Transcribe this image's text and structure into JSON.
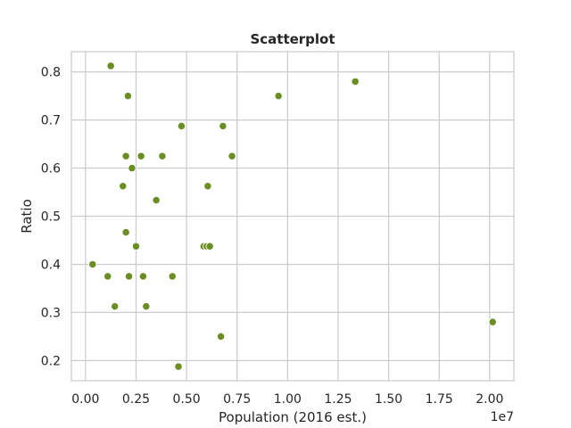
{
  "chart_data": {
    "type": "scatter",
    "title": "Scatterplot",
    "xlabel": "Population (2016 est.)",
    "ylabel": "Ratio",
    "x_offset_label": "1e7",
    "xlim": [
      -0.07,
      2.12
    ],
    "ylim": [
      0.158,
      0.842
    ],
    "x_ticks": [
      0.0,
      0.25,
      0.5,
      0.75,
      1.0,
      1.25,
      1.5,
      1.75,
      2.0
    ],
    "x_tick_labels": [
      "0.00",
      "0.25",
      "0.50",
      "0.75",
      "1.00",
      "1.25",
      "1.50",
      "1.75",
      "2.00"
    ],
    "y_ticks": [
      0.2,
      0.3,
      0.4,
      0.5,
      0.6,
      0.7,
      0.8
    ],
    "y_tick_labels": [
      "0.2",
      "0.3",
      "0.4",
      "0.5",
      "0.6",
      "0.7",
      "0.8"
    ],
    "grid": true,
    "marker_color": "#6b8e23",
    "marker_edge_color": "#ffffff",
    "points": [
      {
        "x": 0.125,
        "y": 0.8125
      },
      {
        "x": 0.21,
        "y": 0.75
      },
      {
        "x": 0.955,
        "y": 0.75
      },
      {
        "x": 1.335,
        "y": 0.78
      },
      {
        "x": 0.475,
        "y": 0.6875
      },
      {
        "x": 0.68,
        "y": 0.6875
      },
      {
        "x": 0.2,
        "y": 0.625
      },
      {
        "x": 0.275,
        "y": 0.625
      },
      {
        "x": 0.38,
        "y": 0.625
      },
      {
        "x": 0.725,
        "y": 0.625
      },
      {
        "x": 0.23,
        "y": 0.6
      },
      {
        "x": 0.185,
        "y": 0.5625
      },
      {
        "x": 0.605,
        "y": 0.5625
      },
      {
        "x": 0.35,
        "y": 0.5333
      },
      {
        "x": 0.2,
        "y": 0.4667
      },
      {
        "x": 0.25,
        "y": 0.4375
      },
      {
        "x": 0.585,
        "y": 0.4375
      },
      {
        "x": 0.6,
        "y": 0.4375
      },
      {
        "x": 0.615,
        "y": 0.4375
      },
      {
        "x": 0.035,
        "y": 0.4
      },
      {
        "x": 0.11,
        "y": 0.375
      },
      {
        "x": 0.215,
        "y": 0.375
      },
      {
        "x": 0.285,
        "y": 0.375
      },
      {
        "x": 0.43,
        "y": 0.375
      },
      {
        "x": 0.145,
        "y": 0.3125
      },
      {
        "x": 0.3,
        "y": 0.3125
      },
      {
        "x": 2.015,
        "y": 0.28
      },
      {
        "x": 0.67,
        "y": 0.25
      },
      {
        "x": 0.46,
        "y": 0.1875
      }
    ]
  }
}
